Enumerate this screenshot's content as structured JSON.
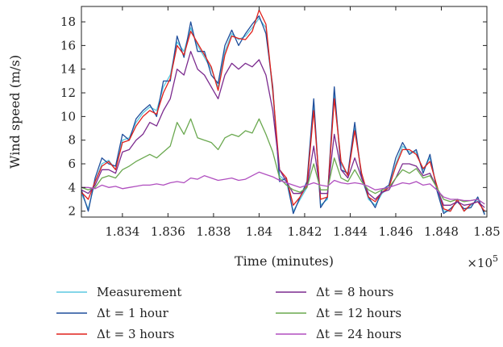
{
  "chart_data": {
    "type": "line",
    "xlabel": "Time (minutes)",
    "ylabel": "Wind speed (m/s)",
    "x_multiplier_label": "×10",
    "x_multiplier_exponent": "5",
    "xlim": [
      1.8322,
      1.85
    ],
    "ylim": [
      1.5,
      19.3
    ],
    "x_ticks": [
      1.834,
      1.836,
      1.838,
      1.84,
      1.842,
      1.844,
      1.846,
      1.848,
      1.85
    ],
    "x_tick_labels": [
      "1.834",
      "1.836",
      "1.838",
      "1.84",
      "1.842",
      "1.844",
      "1.846",
      "1.848",
      "1.85"
    ],
    "y_ticks": [
      2,
      4,
      6,
      8,
      10,
      12,
      14,
      16,
      18
    ],
    "y_tick_labels": [
      "2",
      "4",
      "6",
      "8",
      "10",
      "12",
      "14",
      "16",
      "18"
    ],
    "grid": false,
    "legend_position": "below",
    "series": [
      {
        "name": "Measurement",
        "color": "#5bc8e0",
        "x": [
          1.8322,
          1.8325,
          1.8328,
          1.8331,
          1.8334,
          1.8337,
          1.834,
          1.8343,
          1.8346,
          1.8349,
          1.8352,
          1.8355,
          1.8358,
          1.8361,
          1.8364,
          1.8367,
          1.837,
          1.8373,
          1.8376,
          1.8379,
          1.8382,
          1.8385,
          1.8388,
          1.8391,
          1.8394,
          1.8397,
          1.84,
          1.8403,
          1.8406,
          1.8409,
          1.8412,
          1.8415,
          1.8418,
          1.8421,
          1.8424,
          1.8427,
          1.843,
          1.8433,
          1.8436,
          1.8439,
          1.8442,
          1.8445,
          1.8448,
          1.8451,
          1.8454,
          1.8457,
          1.846,
          1.8463,
          1.8466,
          1.8469,
          1.8472,
          1.8475,
          1.8478,
          1.8481,
          1.8484,
          1.8487,
          1.849,
          1.8493,
          1.8496,
          1.8499
        ],
        "values": [
          3.5,
          2.2,
          4.5,
          6.0,
          6.3,
          5.5,
          8.0,
          8.2,
          9.5,
          10.3,
          10.8,
          10.5,
          12.5,
          13.5,
          16.3,
          15.5,
          17.5,
          16.0,
          15.0,
          14.0,
          12.5,
          15.5,
          17.0,
          16.5,
          16.8,
          17.5,
          18.3,
          17.5,
          12.0,
          5.0,
          4.5,
          2.0,
          3.0,
          4.0,
          11.0,
          2.5,
          3.0,
          12.0,
          6.0,
          5.0,
          9.0,
          5.0,
          3.0,
          2.5,
          3.5,
          4.0,
          6.0,
          7.5,
          7.0,
          7.0,
          5.5,
          6.5,
          4.0,
          2.0,
          2.0,
          3.0,
          2.0,
          2.5,
          3.0,
          1.8
        ]
      },
      {
        "name": "Δt = 1 hour",
        "color": "#1f4e9c",
        "x": [
          1.8322,
          1.8325,
          1.8328,
          1.8331,
          1.8334,
          1.8337,
          1.834,
          1.8343,
          1.8346,
          1.8349,
          1.8352,
          1.8355,
          1.8358,
          1.8361,
          1.8364,
          1.8367,
          1.837,
          1.8373,
          1.8376,
          1.8379,
          1.8382,
          1.8385,
          1.8388,
          1.8391,
          1.8394,
          1.8397,
          1.84,
          1.8403,
          1.8406,
          1.8409,
          1.8412,
          1.8415,
          1.8418,
          1.8421,
          1.8424,
          1.8427,
          1.843,
          1.8433,
          1.8436,
          1.8439,
          1.8442,
          1.8445,
          1.8448,
          1.8451,
          1.8454,
          1.8457,
          1.846,
          1.8463,
          1.8466,
          1.8469,
          1.8472,
          1.8475,
          1.8478,
          1.8481,
          1.8484,
          1.8487,
          1.849,
          1.8493,
          1.8496,
          1.8499
        ],
        "values": [
          3.8,
          2.0,
          4.8,
          6.5,
          6.0,
          5.8,
          8.5,
          8.0,
          9.8,
          10.5,
          11.0,
          10.0,
          13.0,
          13.0,
          16.8,
          15.0,
          18.0,
          15.5,
          15.5,
          13.5,
          12.8,
          16.0,
          17.3,
          16.0,
          17.0,
          17.8,
          18.5,
          17.0,
          12.5,
          4.5,
          4.8,
          1.8,
          3.2,
          4.5,
          11.5,
          2.3,
          3.2,
          12.5,
          5.5,
          5.2,
          9.5,
          4.8,
          3.2,
          2.3,
          3.8,
          4.2,
          6.5,
          7.8,
          6.8,
          7.2,
          5.2,
          6.8,
          3.8,
          1.8,
          2.2,
          2.8,
          2.2,
          2.3,
          3.2,
          1.7
        ]
      },
      {
        "name": "Δt = 3 hours",
        "color": "#e0201b",
        "x": [
          1.8322,
          1.8325,
          1.8328,
          1.8331,
          1.8334,
          1.8337,
          1.834,
          1.8343,
          1.8346,
          1.8349,
          1.8352,
          1.8355,
          1.8358,
          1.8361,
          1.8364,
          1.8367,
          1.837,
          1.8373,
          1.8376,
          1.8379,
          1.8382,
          1.8385,
          1.8388,
          1.8391,
          1.8394,
          1.8397,
          1.84,
          1.8403,
          1.8406,
          1.8409,
          1.8412,
          1.8415,
          1.8418,
          1.8421,
          1.8424,
          1.8427,
          1.843,
          1.8433,
          1.8436,
          1.8439,
          1.8442,
          1.8445,
          1.8448,
          1.8451,
          1.8454,
          1.8457,
          1.846,
          1.8463,
          1.8466,
          1.8469,
          1.8472,
          1.8475,
          1.8478,
          1.8481,
          1.8484,
          1.8487,
          1.849,
          1.8493,
          1.8496,
          1.8499
        ],
        "values": [
          3.6,
          3.0,
          4.5,
          5.8,
          6.2,
          5.5,
          7.8,
          8.0,
          9.2,
          10.0,
          10.5,
          10.2,
          12.0,
          13.2,
          16.0,
          15.2,
          17.2,
          16.2,
          15.2,
          14.2,
          12.2,
          15.2,
          16.8,
          16.6,
          16.5,
          17.2,
          19.0,
          17.8,
          12.2,
          5.5,
          4.8,
          2.5,
          3.2,
          4.2,
          10.5,
          3.0,
          3.2,
          11.5,
          6.2,
          5.0,
          8.8,
          5.2,
          3.2,
          2.8,
          3.6,
          4.0,
          5.8,
          7.2,
          7.2,
          6.8,
          5.6,
          6.2,
          4.2,
          2.2,
          2.0,
          3.0,
          2.0,
          2.6,
          2.8,
          2.0
        ]
      },
      {
        "name": "Δt = 8 hours",
        "color": "#7b2a8e",
        "x": [
          1.8322,
          1.8325,
          1.8328,
          1.8331,
          1.8334,
          1.8337,
          1.834,
          1.8343,
          1.8346,
          1.8349,
          1.8352,
          1.8355,
          1.8358,
          1.8361,
          1.8364,
          1.8367,
          1.837,
          1.8373,
          1.8376,
          1.8379,
          1.8382,
          1.8385,
          1.8388,
          1.8391,
          1.8394,
          1.8397,
          1.84,
          1.8403,
          1.8406,
          1.8409,
          1.8412,
          1.8415,
          1.8418,
          1.8421,
          1.8424,
          1.8427,
          1.843,
          1.8433,
          1.8436,
          1.8439,
          1.8442,
          1.8445,
          1.8448,
          1.8451,
          1.8454,
          1.8457,
          1.846,
          1.8463,
          1.8466,
          1.8469,
          1.8472,
          1.8475,
          1.8478,
          1.8481,
          1.8484,
          1.8487,
          1.849,
          1.8493,
          1.8496,
          1.8499
        ],
        "values": [
          3.8,
          3.5,
          4.2,
          5.5,
          5.5,
          5.2,
          7.0,
          7.2,
          8.0,
          8.5,
          9.5,
          9.2,
          10.5,
          11.5,
          14.0,
          13.5,
          15.5,
          14.0,
          13.5,
          12.5,
          11.5,
          13.5,
          14.5,
          14.0,
          14.5,
          14.2,
          14.8,
          13.5,
          10.5,
          5.5,
          4.5,
          3.5,
          3.5,
          4.0,
          7.5,
          3.5,
          3.5,
          8.5,
          5.5,
          4.8,
          6.5,
          4.8,
          3.5,
          3.0,
          3.6,
          3.8,
          4.8,
          6.0,
          6.0,
          5.8,
          5.0,
          5.2,
          4.0,
          2.5,
          2.5,
          2.8,
          2.5,
          2.6,
          2.8,
          2.3
        ]
      },
      {
        "name": "Δt = 12 hours",
        "color": "#6aa84f",
        "x": [
          1.8322,
          1.8325,
          1.8328,
          1.8331,
          1.8334,
          1.8337,
          1.834,
          1.8343,
          1.8346,
          1.8349,
          1.8352,
          1.8355,
          1.8358,
          1.8361,
          1.8364,
          1.8367,
          1.837,
          1.8373,
          1.8376,
          1.8379,
          1.8382,
          1.8385,
          1.8388,
          1.8391,
          1.8394,
          1.8397,
          1.84,
          1.8403,
          1.8406,
          1.8409,
          1.8412,
          1.8415,
          1.8418,
          1.8421,
          1.8424,
          1.8427,
          1.843,
          1.8433,
          1.8436,
          1.8439,
          1.8442,
          1.8445,
          1.8448,
          1.8451,
          1.8454,
          1.8457,
          1.846,
          1.8463,
          1.8466,
          1.8469,
          1.8472,
          1.8475,
          1.8478,
          1.8481,
          1.8484,
          1.8487,
          1.849,
          1.8493,
          1.8496,
          1.8499
        ],
        "values": [
          4.0,
          3.8,
          4.0,
          4.8,
          5.0,
          4.8,
          5.5,
          5.8,
          6.2,
          6.5,
          6.8,
          6.5,
          7.0,
          7.5,
          9.5,
          8.5,
          9.8,
          8.2,
          8.0,
          7.8,
          7.2,
          8.2,
          8.5,
          8.3,
          8.8,
          8.6,
          9.8,
          8.5,
          7.0,
          4.8,
          4.2,
          3.8,
          3.6,
          4.0,
          6.0,
          3.8,
          3.8,
          6.5,
          4.8,
          4.5,
          5.5,
          4.5,
          3.8,
          3.5,
          3.8,
          4.0,
          4.8,
          5.5,
          5.2,
          5.6,
          4.8,
          5.0,
          4.0,
          3.0,
          2.8,
          3.0,
          2.8,
          2.9,
          3.0,
          2.6
        ]
      },
      {
        "name": "Δt = 24 hours",
        "color": "#b04fbf",
        "x": [
          1.8322,
          1.8325,
          1.8328,
          1.8331,
          1.8334,
          1.8337,
          1.834,
          1.8343,
          1.8346,
          1.8349,
          1.8352,
          1.8355,
          1.8358,
          1.8361,
          1.8364,
          1.8367,
          1.837,
          1.8373,
          1.8376,
          1.8379,
          1.8382,
          1.8385,
          1.8388,
          1.8391,
          1.8394,
          1.8397,
          1.84,
          1.8403,
          1.8406,
          1.8409,
          1.8412,
          1.8415,
          1.8418,
          1.8421,
          1.8424,
          1.8427,
          1.843,
          1.8433,
          1.8436,
          1.8439,
          1.8442,
          1.8445,
          1.8448,
          1.8451,
          1.8454,
          1.8457,
          1.846,
          1.8463,
          1.8466,
          1.8469,
          1.8472,
          1.8475,
          1.8478,
          1.8481,
          1.8484,
          1.8487,
          1.849,
          1.8493,
          1.8496,
          1.8499
        ],
        "values": [
          4.0,
          4.0,
          3.9,
          4.2,
          4.0,
          4.1,
          3.9,
          4.0,
          4.1,
          4.2,
          4.2,
          4.3,
          4.2,
          4.4,
          4.5,
          4.4,
          4.8,
          4.7,
          5.0,
          4.8,
          4.6,
          4.7,
          4.8,
          4.6,
          4.7,
          5.0,
          5.3,
          5.1,
          4.9,
          4.6,
          4.4,
          4.2,
          4.0,
          4.2,
          4.4,
          4.2,
          4.1,
          4.6,
          4.4,
          4.3,
          4.4,
          4.3,
          4.1,
          3.8,
          3.9,
          4.0,
          4.2,
          4.4,
          4.3,
          4.5,
          4.2,
          4.3,
          3.8,
          3.2,
          3.0,
          3.0,
          2.9,
          2.9,
          3.0,
          2.6
        ]
      }
    ]
  }
}
